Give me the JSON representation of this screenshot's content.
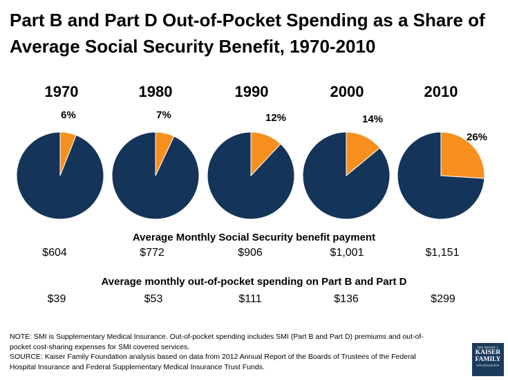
{
  "title": {
    "line1": "Part B and Part D Out-of-Pocket Spending as a Share of",
    "line2": "Average Social Security Benefit, 1970-2010"
  },
  "colors": {
    "benefit": "#143459",
    "oop": "#f7901e"
  },
  "chart_data": {
    "type": "pie",
    "title": "Part B and Part D Out-of-Pocket Spending as a Share of Average Social Security Benefit, 1970-2010",
    "pies": [
      {
        "year": "1970",
        "oop_share": 6,
        "label": "6%",
        "benefit": "$604",
        "oop": "$39"
      },
      {
        "year": "1980",
        "oop_share": 7,
        "label": "7%",
        "benefit": "$772",
        "oop": "$53"
      },
      {
        "year": "1990",
        "oop_share": 12,
        "label": "12%",
        "benefit": "$906",
        "oop": "$111"
      },
      {
        "year": "2000",
        "oop_share": 14,
        "label": "14%",
        "benefit": "$1,001",
        "oop": "$136"
      },
      {
        "year": "2010",
        "oop_share": 26,
        "label": "26%",
        "benefit": "$1,151",
        "oop": "$299"
      }
    ]
  },
  "labels": {
    "benefit_heading": "Average Monthly Social Security benefit payment",
    "oop_heading": "Average monthly out-of-pocket spending on Part B and Part D"
  },
  "note": {
    "line1": "NOTE: SMI is Supplementary Medical Insurance. Out-of-pocket spending includes SMI (Part B and Part D) premiums and out-of-",
    "line2": "pocket cost-sharing expenses for SMI covered services.",
    "line3": "SOURCE: Kaiser Family Foundation analysis based on data from 2012 Annual Report of the Boards of Trustees of the Federal",
    "line4": "Hospital Insurance and Federal Supplementary Medical Insurance Trust Funds."
  },
  "logo": {
    "line1": "THE HENRY J.",
    "line2": "KAISER",
    "line3": "FAMILY",
    "line4": "FOUNDATION"
  }
}
